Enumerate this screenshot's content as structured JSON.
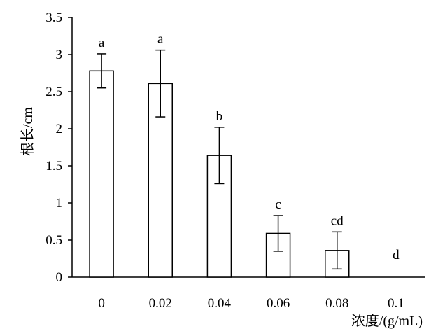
{
  "chart_data": {
    "type": "bar",
    "categories": [
      "0",
      "0.02",
      "0.04",
      "0.06",
      "0.08",
      "0.1"
    ],
    "values": [
      2.78,
      2.61,
      1.64,
      0.59,
      0.36,
      0
    ],
    "error": [
      0.23,
      0.45,
      0.38,
      0.24,
      0.25,
      0
    ],
    "significance": [
      "a",
      "a",
      "b",
      "c",
      "cd",
      "d"
    ],
    "xlabel": "浓度/(g/mL)",
    "ylabel": "根长/cm",
    "ylim": [
      0,
      3.5
    ],
    "yticks": [
      "0",
      "0.5",
      "1",
      "1.5",
      "2",
      "2.5",
      "3",
      "3.5"
    ],
    "ytick_values": [
      0,
      0.5,
      1,
      1.5,
      2,
      2.5,
      3,
      3.5
    ],
    "grid": false,
    "bar_fill": "#ffffff",
    "bar_stroke": "#000000"
  }
}
